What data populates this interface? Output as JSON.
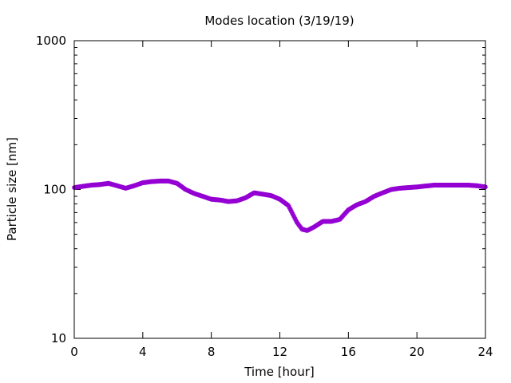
{
  "chart_data": {
    "type": "scatter",
    "title": "Modes location (3/19/19)",
    "xlabel": "Time [hour]",
    "ylabel": "Particle size [nm]",
    "xlim": [
      0,
      24
    ],
    "ylim": [
      10,
      1000
    ],
    "yscale": "log",
    "grid": false,
    "legend": "none",
    "xticks": [
      0,
      4,
      8,
      12,
      16,
      20,
      24
    ],
    "xtick_labels": [
      "0",
      "4",
      "8",
      "12",
      "16",
      "20",
      "24"
    ],
    "yticks": [
      10,
      100,
      1000
    ],
    "ytick_labels": [
      "10",
      "100",
      "1000"
    ],
    "series": [
      {
        "color": "#9400d3",
        "marker": "star",
        "x": [
          0.0,
          0.5,
          1.0,
          1.5,
          2.0,
          2.5,
          3.0,
          3.5,
          4.0,
          4.5,
          5.0,
          5.5,
          6.0,
          6.5,
          7.0,
          7.5,
          8.0,
          8.5,
          9.0,
          9.5,
          10.0,
          10.5,
          11.0,
          11.5,
          12.0,
          12.5,
          13.0,
          13.3,
          13.6,
          14.0,
          14.5,
          15.0,
          15.5,
          16.0,
          16.5,
          17.0,
          17.5,
          18.0,
          18.5,
          19.0,
          19.5,
          20.0,
          21.0,
          22.0,
          23.0,
          23.5,
          24.0
        ],
        "y": [
          103,
          105,
          107,
          108,
          110,
          106,
          102,
          106,
          111,
          113,
          114,
          114,
          110,
          100,
          94,
          90,
          86,
          85,
          83,
          84,
          88,
          95,
          93,
          91,
          86,
          78,
          60,
          54,
          53,
          56,
          61,
          61,
          63,
          73,
          79,
          83,
          90,
          95,
          100,
          102,
          103,
          104,
          107,
          107,
          107,
          106,
          104
        ]
      }
    ]
  }
}
